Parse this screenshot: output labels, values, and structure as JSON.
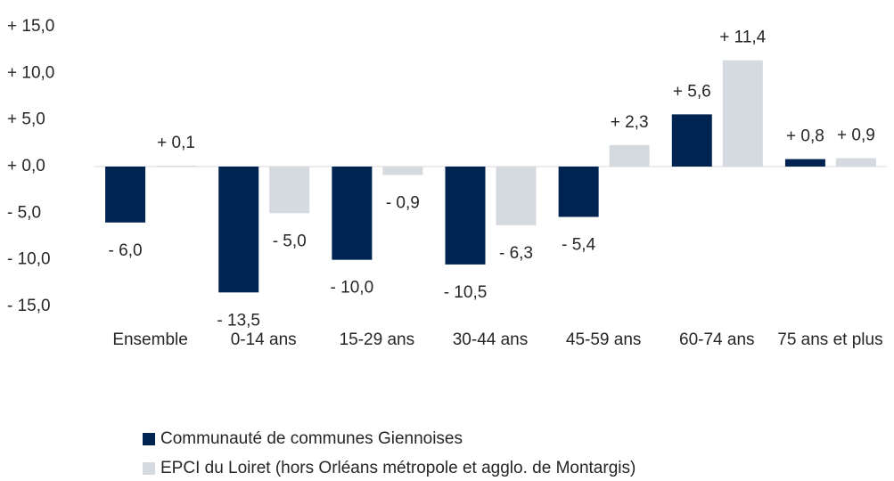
{
  "chart_data": {
    "type": "bar",
    "categories": [
      "Ensemble",
      "0-14 ans",
      "15-29 ans",
      "30-44 ans",
      "45-59 ans",
      "60-74 ans",
      "75 ans et plus"
    ],
    "series": [
      {
        "name": "Communauté de communes Giennoises",
        "color": "#002452",
        "values": [
          -6.0,
          -13.5,
          -10.0,
          -10.5,
          -5.4,
          5.6,
          0.8
        ],
        "value_labels": [
          "- 6,0",
          "- 13,5",
          "- 10,0",
          "- 10,5",
          "- 5,4",
          "+ 5,6",
          "+ 0,8"
        ]
      },
      {
        "name": "EPCI du Loiret (hors Orléans métropole et agglo. de Montargis)",
        "color": "#d5dae1",
        "values": [
          0.1,
          -5.0,
          -0.9,
          -6.3,
          2.3,
          11.4,
          0.9
        ],
        "value_labels": [
          "+ 0,1",
          "- 5,0",
          "- 0,9",
          "- 6,3",
          "+ 2,3",
          "+ 11,4",
          "+ 0,9"
        ]
      }
    ],
    "ylim": [
      -15,
      15
    ],
    "yticks": [
      {
        "value": -15,
        "label": "- 15,0"
      },
      {
        "value": -10,
        "label": "- 10,0"
      },
      {
        "value": -5,
        "label": "- 5,0"
      },
      {
        "value": 0,
        "label": "+ 0,0"
      },
      {
        "value": 5,
        "label": "+ 5,0"
      },
      {
        "value": 10,
        "label": "+ 10,0"
      },
      {
        "value": 15,
        "label": "+ 15,0"
      }
    ],
    "legend": "bottom"
  }
}
